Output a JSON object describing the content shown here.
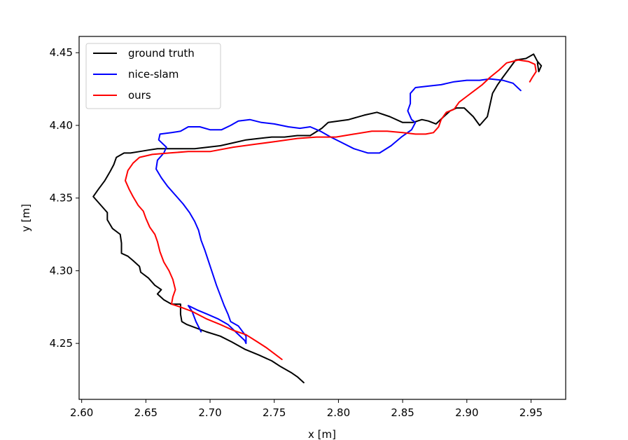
{
  "chart_data": {
    "type": "line",
    "title": "",
    "xlabel": "x [m]",
    "ylabel": "y [m]",
    "xlim": [
      2.598,
      2.977
    ],
    "ylim": [
      4.2115,
      4.4612
    ],
    "xticks": [
      "2.60",
      "2.65",
      "2.70",
      "2.75",
      "2.80",
      "2.85",
      "2.90",
      "2.95"
    ],
    "yticks": [
      "4.25",
      "4.30",
      "4.35",
      "4.40",
      "4.45"
    ],
    "grid": false,
    "legend": "top-left",
    "series": [
      {
        "name": "ground truth",
        "color": "#000000",
        "points": [
          [
            2.773,
            4.223
          ],
          [
            2.768,
            4.227
          ],
          [
            2.763,
            4.23
          ],
          [
            2.755,
            4.234
          ],
          [
            2.748,
            4.238
          ],
          [
            2.738,
            4.242
          ],
          [
            2.727,
            4.246
          ],
          [
            2.717,
            4.251
          ],
          [
            2.708,
            4.255
          ],
          [
            2.697,
            4.258
          ],
          [
            2.688,
            4.261
          ],
          [
            2.682,
            4.263
          ],
          [
            2.678,
            4.265
          ],
          [
            2.677,
            4.27
          ],
          [
            2.677,
            4.277
          ],
          [
            2.67,
            4.277
          ],
          [
            2.664,
            4.28
          ],
          [
            2.659,
            4.284
          ],
          [
            2.662,
            4.287
          ],
          [
            2.657,
            4.29
          ],
          [
            2.652,
            4.295
          ],
          [
            2.646,
            4.299
          ],
          [
            2.645,
            4.303
          ],
          [
            2.64,
            4.307
          ],
          [
            2.636,
            4.31
          ],
          [
            2.631,
            4.312
          ],
          [
            2.631,
            4.319
          ],
          [
            2.63,
            4.325
          ],
          [
            2.624,
            4.329
          ],
          [
            2.62,
            4.335
          ],
          [
            2.62,
            4.34
          ],
          [
            2.616,
            4.344
          ],
          [
            2.609,
            4.351
          ],
          [
            2.613,
            4.356
          ],
          [
            2.618,
            4.362
          ],
          [
            2.622,
            4.368
          ],
          [
            2.625,
            4.373
          ],
          [
            2.627,
            4.378
          ],
          [
            2.633,
            4.381
          ],
          [
            2.638,
            4.381
          ],
          [
            2.645,
            4.382
          ],
          [
            2.652,
            4.383
          ],
          [
            2.659,
            4.384
          ],
          [
            2.668,
            4.384
          ],
          [
            2.676,
            4.384
          ],
          [
            2.688,
            4.384
          ],
          [
            2.698,
            4.385
          ],
          [
            2.708,
            4.386
          ],
          [
            2.718,
            4.388
          ],
          [
            2.728,
            4.39
          ],
          [
            2.738,
            4.391
          ],
          [
            2.748,
            4.392
          ],
          [
            2.758,
            4.392
          ],
          [
            2.768,
            4.393
          ],
          [
            2.778,
            4.393
          ],
          [
            2.787,
            4.398
          ],
          [
            2.792,
            4.402
          ],
          [
            2.8,
            4.403
          ],
          [
            2.808,
            4.404
          ],
          [
            2.82,
            4.407
          ],
          [
            2.83,
            4.409
          ],
          [
            2.84,
            4.406
          ],
          [
            2.85,
            4.402
          ],
          [
            2.858,
            4.402
          ],
          [
            2.865,
            4.404
          ],
          [
            2.87,
            4.403
          ],
          [
            2.876,
            4.401
          ],
          [
            2.882,
            4.406
          ],
          [
            2.887,
            4.41
          ],
          [
            2.892,
            4.412
          ],
          [
            2.898,
            4.412
          ],
          [
            2.905,
            4.406
          ],
          [
            2.91,
            4.4
          ],
          [
            2.916,
            4.406
          ],
          [
            2.918,
            4.414
          ],
          [
            2.92,
            4.422
          ],
          [
            2.924,
            4.428
          ],
          [
            2.928,
            4.433
          ],
          [
            2.933,
            4.439
          ],
          [
            2.938,
            4.445
          ],
          [
            2.946,
            4.446
          ],
          [
            2.952,
            4.449
          ],
          [
            2.955,
            4.444
          ],
          [
            2.958,
            4.441
          ],
          [
            2.956,
            4.437
          ],
          [
            2.955,
            4.443
          ]
        ]
      },
      {
        "name": "nice-slam",
        "color": "#0000ff",
        "points": [
          [
            2.693,
            4.258
          ],
          [
            2.689,
            4.265
          ],
          [
            2.686,
            4.272
          ],
          [
            2.683,
            4.276
          ],
          [
            2.69,
            4.273
          ],
          [
            2.698,
            4.27
          ],
          [
            2.706,
            4.267
          ],
          [
            2.714,
            4.263
          ],
          [
            2.721,
            4.257
          ],
          [
            2.727,
            4.252
          ],
          [
            2.728,
            4.25
          ],
          [
            2.728,
            4.255
          ],
          [
            2.722,
            4.262
          ],
          [
            2.716,
            4.265
          ],
          [
            2.714,
            4.27
          ],
          [
            2.711,
            4.276
          ],
          [
            2.708,
            4.283
          ],
          [
            2.705,
            4.29
          ],
          [
            2.702,
            4.298
          ],
          [
            2.699,
            4.306
          ],
          [
            2.696,
            4.314
          ],
          [
            2.693,
            4.321
          ],
          [
            2.691,
            4.328
          ],
          [
            2.688,
            4.334
          ],
          [
            2.684,
            4.34
          ],
          [
            2.679,
            4.346
          ],
          [
            2.673,
            4.352
          ],
          [
            2.667,
            4.358
          ],
          [
            2.662,
            4.364
          ],
          [
            2.658,
            4.37
          ],
          [
            2.659,
            4.376
          ],
          [
            2.664,
            4.381
          ],
          [
            2.666,
            4.385
          ],
          [
            2.66,
            4.39
          ],
          [
            2.661,
            4.394
          ],
          [
            2.67,
            4.395
          ],
          [
            2.677,
            4.396
          ],
          [
            2.683,
            4.399
          ],
          [
            2.692,
            4.399
          ],
          [
            2.7,
            4.397
          ],
          [
            2.709,
            4.397
          ],
          [
            2.716,
            4.4
          ],
          [
            2.722,
            4.403
          ],
          [
            2.731,
            4.404
          ],
          [
            2.74,
            4.402
          ],
          [
            2.75,
            4.401
          ],
          [
            2.761,
            4.399
          ],
          [
            2.77,
            4.398
          ],
          [
            2.778,
            4.399
          ],
          [
            2.786,
            4.396
          ],
          [
            2.794,
            4.392
          ],
          [
            2.803,
            4.388
          ],
          [
            2.812,
            4.384
          ],
          [
            2.823,
            4.381
          ],
          [
            2.832,
            4.381
          ],
          [
            2.841,
            4.386
          ],
          [
            2.849,
            4.392
          ],
          [
            2.857,
            4.397
          ],
          [
            2.86,
            4.402
          ],
          [
            2.857,
            4.404
          ],
          [
            2.854,
            4.41
          ],
          [
            2.856,
            4.415
          ],
          [
            2.856,
            4.422
          ],
          [
            2.86,
            4.426
          ],
          [
            2.87,
            4.427
          ],
          [
            2.88,
            4.428
          ],
          [
            2.89,
            4.43
          ],
          [
            2.9,
            4.431
          ],
          [
            2.91,
            4.431
          ],
          [
            2.918,
            4.432
          ],
          [
            2.928,
            4.431
          ],
          [
            2.936,
            4.429
          ],
          [
            2.942,
            4.424
          ]
        ]
      },
      {
        "name": "ours",
        "color": "#ff0000",
        "points": [
          [
            2.756,
            4.239
          ],
          [
            2.75,
            4.243
          ],
          [
            2.744,
            4.247
          ],
          [
            2.737,
            4.251
          ],
          [
            2.728,
            4.256
          ],
          [
            2.718,
            4.259
          ],
          [
            2.708,
            4.263
          ],
          [
            2.697,
            4.267
          ],
          [
            2.686,
            4.272
          ],
          [
            2.677,
            4.275
          ],
          [
            2.67,
            4.277
          ],
          [
            2.671,
            4.282
          ],
          [
            2.673,
            4.287
          ],
          [
            2.671,
            4.294
          ],
          [
            2.668,
            4.3
          ],
          [
            2.664,
            4.306
          ],
          [
            2.661,
            4.313
          ],
          [
            2.659,
            4.32
          ],
          [
            2.657,
            4.325
          ],
          [
            2.653,
            4.33
          ],
          [
            2.65,
            4.336
          ],
          [
            2.648,
            4.341
          ],
          [
            2.644,
            4.345
          ],
          [
            2.64,
            4.351
          ],
          [
            2.637,
            4.356
          ],
          [
            2.634,
            4.362
          ],
          [
            2.636,
            4.369
          ],
          [
            2.64,
            4.374
          ],
          [
            2.645,
            4.378
          ],
          [
            2.655,
            4.38
          ],
          [
            2.668,
            4.381
          ],
          [
            2.683,
            4.382
          ],
          [
            2.7,
            4.382
          ],
          [
            2.718,
            4.385
          ],
          [
            2.735,
            4.387
          ],
          [
            2.752,
            4.389
          ],
          [
            2.768,
            4.391
          ],
          [
            2.783,
            4.392
          ],
          [
            2.798,
            4.392
          ],
          [
            2.812,
            4.394
          ],
          [
            2.826,
            4.396
          ],
          [
            2.838,
            4.396
          ],
          [
            2.85,
            4.395
          ],
          [
            2.86,
            4.394
          ],
          [
            2.868,
            4.394
          ],
          [
            2.874,
            4.395
          ],
          [
            2.878,
            4.399
          ],
          [
            2.88,
            4.404
          ],
          [
            2.884,
            4.409
          ],
          [
            2.89,
            4.411
          ],
          [
            2.894,
            4.416
          ],
          [
            2.9,
            4.42
          ],
          [
            2.906,
            4.424
          ],
          [
            2.912,
            4.428
          ],
          [
            2.918,
            4.433
          ],
          [
            2.925,
            4.438
          ],
          [
            2.931,
            4.443
          ],
          [
            2.94,
            4.445
          ],
          [
            2.948,
            4.444
          ],
          [
            2.953,
            4.442
          ],
          [
            2.954,
            4.437
          ],
          [
            2.951,
            4.433
          ],
          [
            2.949,
            4.43
          ]
        ]
      }
    ]
  }
}
